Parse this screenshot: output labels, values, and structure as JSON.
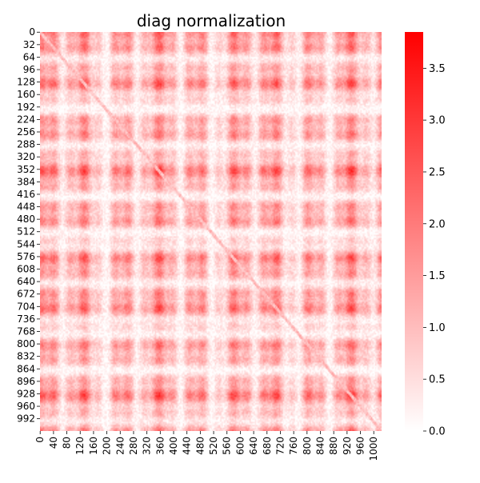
{
  "chart_data": {
    "type": "heatmap",
    "title": "diag normalization",
    "xlabel": "",
    "ylabel": "",
    "n": 1024,
    "x_ticks": [
      0,
      40,
      80,
      120,
      160,
      200,
      240,
      280,
      320,
      360,
      400,
      440,
      480,
      520,
      560,
      600,
      640,
      680,
      720,
      760,
      800,
      840,
      880,
      920,
      960,
      1000
    ],
    "y_ticks": [
      0,
      32,
      64,
      96,
      128,
      160,
      192,
      224,
      256,
      288,
      320,
      352,
      384,
      416,
      448,
      480,
      512,
      544,
      576,
      608,
      640,
      672,
      704,
      736,
      768,
      800,
      832,
      864,
      896,
      928,
      960,
      992
    ],
    "colorbar": {
      "min": 0.0,
      "max": 3.85,
      "ticks": [
        "0.0",
        "0.5",
        "1.0",
        "1.5",
        "2.0",
        "2.5",
        "3.0",
        "3.5"
      ],
      "low_color": "#ffffff",
      "high_color": "#ff0000"
    },
    "grid": false,
    "legend": "colorbar-right",
    "pattern": "checkerboard of high/low bands, symmetric, lower values near diagonal"
  }
}
